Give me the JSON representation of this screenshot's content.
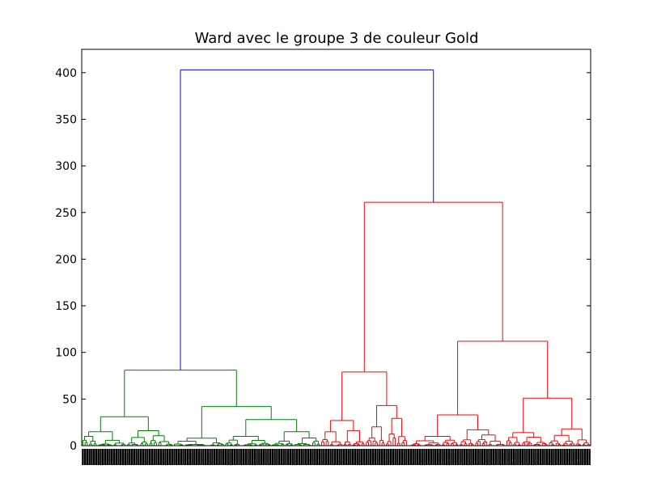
{
  "chart_data": {
    "type": "dendrogram",
    "title": "Ward avec le groupe 3 de couleur Gold",
    "xlabel": "",
    "ylabel": "",
    "ylim": [
      0,
      425
    ],
    "yticks": [
      0,
      50,
      100,
      150,
      200,
      250,
      300,
      350,
      400
    ],
    "grid": false,
    "colors": {
      "link_above_threshold": "#0000ff",
      "cluster_1": "#008000",
      "cluster_2": "#ff0000"
    },
    "root_merge_height": 403,
    "top_level_clusters": [
      {
        "color": "#008000",
        "merge_height": 81,
        "subclusters": [
          {
            "merge_height": 31,
            "children": [
              {
                "merge_height": 15
              },
              {
                "merge_height": 16
              }
            ]
          },
          {
            "merge_height": 42,
            "children": [
              {
                "merge_height": 8
              },
              {
                "merge_height": 28,
                "children": [
                  {
                    "merge_height": 10
                  },
                  {
                    "merge_height": 15
                  }
                ]
              }
            ]
          }
        ]
      },
      {
        "color": "#ff0000",
        "merge_height": 261,
        "subclusters": [
          {
            "merge_height": 79,
            "children": [
              {
                "merge_height": 27
              },
              {
                "merge_height": 43
              }
            ]
          },
          {
            "merge_height": 112,
            "children": [
              {
                "merge_height": 33,
                "children": [
                  {
                    "merge_height": 10
                  },
                  {
                    "merge_height": 17
                  }
                ]
              },
              {
                "merge_height": 51,
                "children": [
                  {
                    "merge_height": 14
                  },
                  {
                    "merge_height": 18
                  }
                ]
              }
            ]
          }
        ]
      }
    ]
  }
}
